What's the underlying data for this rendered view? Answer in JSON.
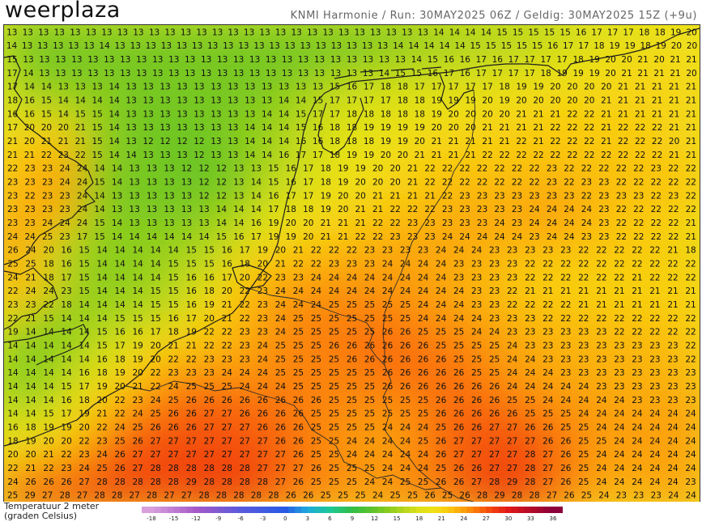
{
  "brand": {
    "part1": "weer",
    "part2": "plaza"
  },
  "run_info": "KNMI Harmonie / Run: 30MAY2025 06Z / Geldig: 30MAY2025 15Z (+9u)",
  "legend": {
    "title_line1": "Temperatuur 2 meter",
    "title_line2": "(graden Celsius)",
    "ticks": [
      "-18",
      "-15",
      "-12",
      "-9",
      "-6",
      "-3",
      "0",
      "3",
      "6",
      "9",
      "12",
      "15",
      "18",
      "21",
      "24",
      "27",
      "30",
      "33",
      "36"
    ]
  },
  "grid": {
    "rows": [
      "13 13 13 13 13 13 13 13 13 13 13 13 13 13 13 13 13 13 13 13 13 13 13 13 13 13 13 14 14 14 14 15 15 15 15 15 16 17 17 17 18 18 19 20",
      "14 13 13 13 13 13 14 13 13 13 13 13 13 13 13 13 13 13 13 13 13 13 13 13 13 14 14 14 14 14 15 15 15 15 15 16 17 17 18 19 19 18 19 20 20",
      "15 13 13 13 13 13 13 13 13 13 13 13 13 13 13 13 13 13 13 13 13 13 13 13 13 14 15 16 16 17 16 17 17 17 17 18 19 20 20 21 20 21 21",
      "17 14 13 13 13 13 13 13 13 13 13 13 13 13 13 13 13 13 13 13 13 13 13 14 15 15 16 17 16 17 17 17 17 18 19 19 19 20 21 21 21 21 20",
      "17 14 14 13 13 13 14 13 13 13 13 13 13 13 13 13 13 13 13 15 16 17 18 18 17 17 17 17 17 18 19 19 20 20 20 20 21 21 21 21 21",
      "18 16 15 14 14 14 14 13 13 13 13 13 13 13 13 13 14 14 15 17 17 17 17 18 18 19 19 19 20 19 20 20 20 20 20 21 21 21 21 21 21",
      "16 16 15 14 15 15 14 13 13 13 13 13 13 13 13 14 14 15 17 17 18 18 18 18 18 19 20 20 20 20 21 21 21 22 22 21 21 21 21 21 21",
      "17 20 20 20 21 15 14 13 13 13 13 13 13 13 14 14 14 15 16 18 18 19 19 19 19 20 20 20 21 21 21 21 22 22 22 21 22 22 22 21 21",
      "21 20 21 21 21 15 14 13 12 12 12 12 13 13 14 14 14 16 16 18 18 18 19 19 20 21 21 21 21 21 22 21 22 22 22 21 22 22 22 20 21",
      "21 21 22 23 22 15 14 14 13 13 13 12 13 13 14 14 16 17 17 18 19 19 20 20 21 21 21 21 22 22 22 22 22 22 22 22 22 22 22 21 21",
      "22 23 23 24 24 14 14 13 13 13 12 12 12 13 13 15 16 17 18 19 19 20 20 21 22 22 22 22 22 22 22 23 22 22 22 22 22 23 22 22",
      "23 23 23 24 24 15 14 13 13 13 13 12 12 13 14 15 16 17 18 19 20 20 20 21 22 22 22 22 22 22 22 23 22 23 23 22 22 22 22 22",
      "23 22 23 23 24 14 13 13 13 13 13 12 12 13 14 16 17 17 19 20 20 21 21 21 21 22 23 23 23 23 23 23 23 22 23 23 23 22 23 22",
      "23 23 23 23 24 14 13 13 13 13 13 13 14 14 14 17 18 18 19 20 21 21 22 22 22 23 23 23 23 23 24 24 24 24 23 22 22 22 22 22",
      "23 23 24 24 24 15 14 13 13 13 13 13 14 14 16 19 20 20 21 21 21 22 22 23 23 23 23 23 24 23 24 24 24 24 23 22 22 22 22 21",
      "24 24 25 23 17 15 14 14 14 14 14 14 15 16 17 19 19 20 21 21 22 22 23 23 23 24 24 24 24 24 23 24 24 23 23 22 22 22 22 21",
      "26 24 20 16 15 14 14 14 14 14 15 15 16 17 19 20 21 22 22 22 23 23 23 23 24 24 24 23 23 23 23 23 22 22 22 22 22 21 18",
      "25 25 18 16 15 14 14 14 14 15 15 15 16 18 20 21 22 22 23 23 23 24 24 24 24 23 23 23 23 22 22 22 22 22 22 22 22 22 22",
      "24 21 18 17 15 14 14 14 14 15 16 16 17 20 22 23 23 24 24 24 24 24 24 24 24 23 23 23 23 22 22 22 22 22 22 21 22 22 22",
      "22 24 24 23 15 14 14 14 15 15 16 18 20 22 23 24 24 24 24 24 24 24 24 24 24 24 23 23 22 21 21 21 21 21 21 21 21 21 21",
      "23 23 22 18 14 14 14 14 15 15 16 19 21 22 23 24 24 24 25 25 25 25 25 24 24 24 23 23 22 22 22 22 21 21 21 21 21 21 21",
      "22 21 15 14 14 14 15 15 15 16 17 20 21 22 23 24 25 25 25 25 25 25 25 24 24 24 24 23 23 23 22 22 22 22 22 22 22 22 22",
      "19 14 14 14 14 15 16 16 17 18 19 22 22 23 23 24 25 25 25 25 25 26 26 25 25 25 24 24 23 23 23 23 23 23 22 22 22 22 22",
      "14 14 14 14 14 15 17 19 20 21 21 22 22 23 24 25 25 25 26 26 26 26 26 26 25 25 25 25 24 23 23 23 23 23 23 23 23 23 22",
      "14 14 14 14 14 16 18 19 20 22 22 23 23 23 24 25 25 25 25 26 26 26 26 26 26 25 25 25 24 24 23 23 23 23 23 23 23 23 22",
      "14 14 14 14 16 18 19 20 22 23 23 23 24 24 24 25 25 25 25 25 25 26 26 26 26 26 25 25 24 24 24 23 23 23 23 23 23 23 23",
      "14 14 14 15 17 19 20 21 22 24 25 25 25 24 24 24 25 25 25 25 25 26 26 26 26 26 26 26 24 24 24 24 24 23 23 23 23 23 23",
      "14 14 14 16 18 20 22 23 24 25 26 26 26 26 26 26 26 26 25 25 25 25 25 25 26 26 26 26 25 25 24 24 24 24 24 23 23 23 23",
      "14 14 15 17 19 21 22 24 25 26 26 27 27 26 26 26 26 25 25 25 25 25 25 25 26 26 26 26 26 25 25 25 24 24 24 24 24 24 24",
      "16 18 19 19 20 22 24 25 26 26 26 27 27 27 26 26 26 25 25 25 25 24 24 24 25 26 26 27 27 26 26 25 25 24 24 24 24 24 24",
      "18 19 20 20 22 23 25 26 27 27 27 27 27 27 27 26 26 25 25 24 24 24 24 25 26 27 27 27 27 27 26 26 25 25 24 24 24 24 24",
      "20 20 21 22 23 24 26 27 27 27 27 27 27 27 27 27 26 25 25 24 24 24 24 24 26 27 27 27 27 28 27 26 25 24 24 24 24 24 24",
      "22 21 22 23 24 25 26 27 28 28 28 28 28 28 27 27 27 26 25 25 25 24 24 24 25 26 26 27 27 28 27 26 25 24 24 24 24 24 24",
      "24 26 26 26 27 28 28 28 28 28 29 28 28 28 28 27 26 25 25 25 24 24 25 25 26 26 27 28 29 28 27 26 25 24 24 24 24 24 23",
      "25 29 27 28 27 28 28 27 28 27 27 28 28 28 28 28 26 26 25 25 25 24 25 25 26 25 26 28 29 28 28 27 26 25 24 23 23 23 24 24"
    ]
  }
}
